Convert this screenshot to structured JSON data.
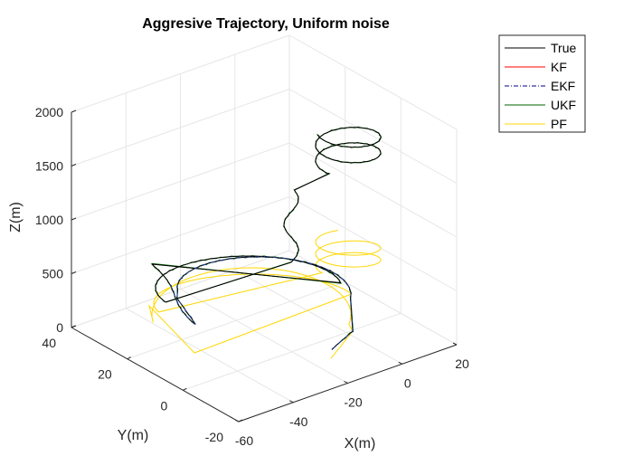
{
  "chart_data": {
    "type": "line",
    "projection": "3d",
    "title": "Aggresive Trajectory, Uniform noise",
    "xlabel": "X(m)",
    "ylabel": "Y(m)",
    "zlabel": "Z(m)",
    "x_ticks": [
      "-60",
      "-40",
      "-20",
      "0",
      "20"
    ],
    "y_ticks": [
      "-20",
      "0",
      "20",
      "40"
    ],
    "z_ticks": [
      "0",
      "500",
      "1000",
      "1500",
      "2000"
    ],
    "xlim": [
      -60,
      20
    ],
    "ylim": [
      -20,
      40
    ],
    "zlim": [
      0,
      2000
    ],
    "grid": true,
    "legend_position": "top-right",
    "series": [
      {
        "name": "True",
        "color": "#000000",
        "style": "solid"
      },
      {
        "name": "KF",
        "color": "#ff0000",
        "style": "solid"
      },
      {
        "name": "EKF",
        "color": "#000080",
        "style": "dash-dot"
      },
      {
        "name": "UKF",
        "color": "#006400",
        "style": "solid"
      },
      {
        "name": "PF",
        "color": "#ffd700",
        "style": "solid"
      }
    ]
  }
}
